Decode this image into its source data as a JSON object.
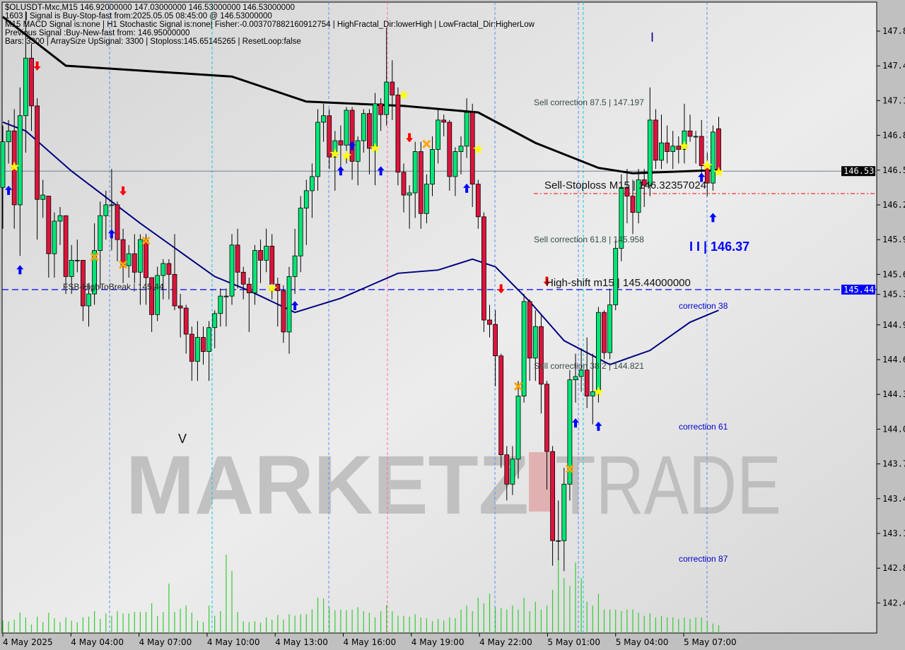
{
  "header": {
    "line1": "$OLUSDT-Mxc,M15  146.92000000 147.03000000 146.53000000 146.53000000",
    "line2": "1603 | Signal is Buy-Stop-fast from:2025.05.05 08:45:00 @ 146.53000000",
    "line3": "M15 MACD Signal is:none | H1 Stochastic Signal is:none| Fisher:-0.003707882160912754 | HighFractal_Dir:lowerHigh | LowFractal_Dir:HigherLow",
    "line4": "Previous Signal :Buy-New-fast from: 146.95000000",
    "line5": "Bars: 3300 | ArraySize UpSignal: 3300 | Stoploss:145.65145265 | ResetLoop:false"
  },
  "annotations": {
    "sell_corr_875": "Sell correction 87.5 | 147.197",
    "sell_stoploss": "Sell-Stoploss M15 | 146.32357024",
    "sell_corr_618": "Sell correction 61.8 | 145.958",
    "level_ii": "I I | 146.37",
    "high_shift": "High-shift m15 | 145.44000000",
    "correction_38": "correction 38",
    "sell_corr_382": "Sell correction 38.2 | 144.821",
    "correction_61": "correction 61",
    "correction_87": "correction 87",
    "fsb_high": "FSB-HighToBreak | 145.44",
    "wave_v": "V",
    "wave_i": "I"
  },
  "watermark": {
    "left": "MARKETZ",
    "mid": "I",
    "right": "TRADE"
  },
  "colors": {
    "bull": "#00e676",
    "bear": "#dc143c",
    "ma_slow": "#000000",
    "ma_fast": "#000080",
    "bid_line": "#708090",
    "stoploss_line": "#ff0000",
    "high_shift_line": "#0000ff",
    "volume": "#32cd32",
    "up_arrow": "#0000ff",
    "down_arrow": "#ff0000",
    "star": "#ffff00",
    "cross": "#ffa500",
    "bid_label_bg": "#000000",
    "high_label_bg": "#0000ff"
  },
  "chart_data": {
    "type": "candlestick",
    "symbol": "$OLUSDT-Mxc",
    "timeframe": "M15",
    "ylim": [
      142.28,
      148.085
    ],
    "y_ticks": [
      "147.8",
      "147.4",
      "147.1",
      "146.8",
      "146.5",
      "146.2",
      "145.9",
      "145.6",
      "145.3",
      "144.9",
      "144.6",
      "144.3",
      "144.0",
      "143.7",
      "143.4",
      "143.1",
      "142.8",
      "142.4"
    ],
    "x_ticks": [
      "4 May 2025",
      "4 May 04:00",
      "4 May 07:00",
      "4 May 10:00",
      "4 May 13:00",
      "4 May 16:00",
      "4 May 19:00",
      "4 May 22:00",
      "5 May 01:00",
      "5 May 04:00",
      "5 May 07:00"
    ],
    "current_price_label": "146.53",
    "high_shift_label": "145.44",
    "levels": {
      "bid": 146.53,
      "stoploss": 146.32357024,
      "high_shift": 145.44
    },
    "candles_ohlc": [
      [
        146.38,
        146.95,
        146.0,
        146.8
      ],
      [
        146.8,
        147.0,
        146.6,
        146.9
      ],
      [
        146.9,
        147.1,
        146.0,
        146.22
      ],
      [
        146.22,
        147.3,
        145.75,
        147.04
      ],
      [
        147.04,
        148.0,
        146.7,
        147.57
      ],
      [
        147.57,
        147.7,
        146.9,
        147.13
      ],
      [
        147.13,
        147.2,
        145.9,
        146.27
      ],
      [
        146.27,
        146.45,
        146.1,
        146.31
      ],
      [
        146.3,
        146.3,
        145.55,
        145.77
      ],
      [
        145.77,
        146.15,
        145.55,
        146.07
      ],
      [
        146.07,
        146.2,
        145.85,
        146.12
      ],
      [
        146.12,
        146.12,
        145.4,
        145.56
      ],
      [
        145.56,
        145.85,
        145.4,
        145.71
      ],
      [
        145.71,
        145.9,
        145.6,
        145.71
      ],
      [
        145.71,
        145.71,
        145.15,
        145.29
      ],
      [
        145.29,
        145.5,
        145.1,
        145.4
      ],
      [
        145.4,
        146.05,
        145.3,
        145.8
      ],
      [
        145.8,
        146.25,
        145.45,
        146.12
      ],
      [
        146.12,
        146.35,
        145.9,
        146.22
      ],
      [
        146.22,
        146.55,
        145.8,
        146.22
      ],
      [
        146.22,
        146.25,
        145.7,
        145.9
      ],
      [
        145.9,
        146.0,
        145.5,
        145.66
      ],
      [
        145.66,
        145.85,
        145.55,
        145.77
      ],
      [
        145.77,
        145.95,
        145.5,
        145.6
      ],
      [
        145.6,
        145.95,
        145.3,
        145.9
      ],
      [
        145.9,
        145.95,
        145.3,
        145.55
      ],
      [
        145.55,
        145.55,
        145.05,
        145.21
      ],
      [
        145.21,
        145.65,
        145.15,
        145.57
      ],
      [
        145.57,
        145.72,
        145.35,
        145.68
      ],
      [
        145.68,
        145.72,
        145.35,
        145.58
      ],
      [
        145.58,
        145.95,
        145.25,
        145.29
      ],
      [
        145.29,
        145.4,
        145.0,
        145.27
      ],
      [
        145.27,
        145.3,
        144.85,
        145.03
      ],
      [
        145.03,
        145.1,
        144.6,
        144.78
      ],
      [
        144.78,
        145.15,
        144.6,
        145.0
      ],
      [
        145.0,
        145.1,
        144.75,
        144.87
      ],
      [
        144.87,
        145.15,
        144.6,
        145.09
      ],
      [
        145.09,
        145.25,
        144.9,
        145.22
      ],
      [
        145.22,
        145.45,
        145.1,
        145.38
      ],
      [
        145.38,
        145.45,
        145.1,
        145.38
      ],
      [
        145.38,
        145.95,
        145.3,
        145.85
      ],
      [
        145.85,
        146.0,
        145.45,
        145.6
      ],
      [
        145.6,
        145.65,
        145.35,
        145.49
      ],
      [
        145.49,
        145.55,
        145.05,
        145.41
      ],
      [
        145.41,
        145.85,
        145.3,
        145.8
      ],
      [
        145.8,
        145.9,
        145.5,
        145.71
      ],
      [
        145.71,
        146.0,
        145.6,
        145.84
      ],
      [
        145.84,
        145.95,
        145.35,
        145.49
      ],
      [
        145.49,
        145.55,
        145.1,
        145.43
      ],
      [
        145.43,
        145.48,
        144.95,
        145.05
      ],
      [
        145.05,
        145.65,
        144.85,
        145.56
      ],
      [
        145.56,
        146.0,
        145.4,
        145.75
      ],
      [
        145.75,
        146.3,
        145.6,
        146.19
      ],
      [
        146.19,
        146.45,
        145.85,
        146.35
      ],
      [
        146.35,
        146.6,
        146.1,
        146.48
      ],
      [
        146.48,
        147.1,
        146.35,
        146.98
      ],
      [
        146.98,
        147.15,
        146.8,
        147.04
      ],
      [
        147.04,
        147.1,
        146.55,
        146.66
      ],
      [
        146.66,
        146.9,
        146.35,
        146.81
      ],
      [
        146.81,
        146.95,
        146.5,
        146.77
      ],
      [
        146.77,
        147.12,
        146.6,
        147.09
      ],
      [
        147.09,
        147.12,
        146.45,
        146.62
      ],
      [
        146.62,
        146.85,
        146.4,
        146.81
      ],
      [
        146.81,
        147.1,
        146.7,
        147.06
      ],
      [
        147.06,
        147.1,
        146.5,
        146.74
      ],
      [
        146.74,
        147.25,
        146.4,
        147.15
      ],
      [
        147.15,
        147.2,
        146.9,
        147.05
      ],
      [
        147.05,
        147.85,
        146.95,
        147.35
      ],
      [
        147.35,
        147.55,
        147.0,
        147.23
      ],
      [
        147.23,
        147.3,
        146.4,
        146.52
      ],
      [
        146.52,
        146.6,
        146.15,
        146.31
      ],
      [
        146.31,
        146.4,
        146.0,
        146.33
      ],
      [
        146.33,
        146.8,
        146.1,
        146.71
      ],
      [
        146.71,
        146.8,
        146.0,
        146.14
      ],
      [
        146.14,
        146.5,
        146.05,
        146.41
      ],
      [
        146.41,
        146.85,
        146.3,
        146.73
      ],
      [
        146.73,
        147.1,
        146.6,
        147.0
      ],
      [
        147.0,
        147.05,
        146.85,
        146.98
      ],
      [
        146.98,
        147.0,
        146.35,
        146.48
      ],
      [
        146.48,
        146.75,
        146.3,
        146.71
      ],
      [
        146.71,
        146.85,
        146.5,
        146.76
      ],
      [
        146.76,
        147.2,
        146.65,
        147.07
      ],
      [
        147.07,
        147.15,
        146.2,
        146.41
      ],
      [
        146.41,
        146.45,
        146.0,
        146.11
      ],
      [
        146.11,
        146.15,
        145.05,
        145.16
      ],
      [
        145.16,
        145.3,
        145.0,
        145.12
      ],
      [
        145.12,
        145.25,
        144.55,
        144.83
      ],
      [
        144.83,
        144.85,
        143.8,
        143.92
      ],
      [
        143.92,
        144.0,
        143.5,
        143.65
      ],
      [
        143.65,
        144.0,
        143.55,
        143.88
      ],
      [
        143.88,
        144.6,
        143.7,
        144.46
      ],
      [
        144.46,
        145.4,
        144.4,
        145.33
      ],
      [
        145.33,
        145.35,
        144.6,
        144.81
      ],
      [
        144.81,
        145.25,
        144.6,
        145.1
      ],
      [
        145.1,
        145.2,
        144.3,
        144.57
      ],
      [
        144.57,
        144.6,
        143.6,
        143.95
      ],
      [
        143.95,
        144.0,
        142.9,
        143.13
      ],
      [
        143.13,
        143.5,
        142.95,
        143.13
      ],
      [
        143.13,
        143.8,
        142.85,
        143.65
      ],
      [
        143.65,
        144.7,
        143.5,
        144.61
      ],
      [
        144.61,
        144.85,
        144.4,
        144.64
      ],
      [
        144.64,
        144.9,
        144.5,
        144.7
      ],
      [
        144.7,
        145.0,
        144.35,
        144.46
      ],
      [
        144.46,
        144.85,
        144.2,
        144.5
      ],
      [
        144.5,
        145.28,
        144.4,
        145.23
      ],
      [
        145.23,
        145.25,
        144.8,
        144.86
      ],
      [
        144.86,
        145.45,
        144.8,
        145.3
      ],
      [
        145.3,
        145.9,
        145.25,
        145.82
      ],
      [
        145.82,
        146.5,
        145.7,
        146.38
      ],
      [
        146.38,
        146.55,
        146.05,
        146.3
      ],
      [
        146.3,
        146.45,
        145.95,
        146.15
      ],
      [
        146.15,
        146.55,
        146.05,
        146.45
      ],
      [
        146.45,
        146.55,
        146.2,
        146.4
      ],
      [
        146.4,
        147.3,
        146.3,
        147.0
      ],
      [
        147.0,
        147.1,
        146.55,
        146.63
      ],
      [
        146.63,
        147.05,
        146.55,
        146.79
      ],
      [
        146.79,
        146.95,
        146.6,
        146.71
      ],
      [
        146.71,
        146.9,
        146.55,
        146.76
      ],
      [
        146.76,
        146.85,
        146.6,
        146.73
      ],
      [
        146.73,
        147.15,
        146.6,
        146.9
      ],
      [
        146.9,
        147.05,
        146.8,
        146.85
      ],
      [
        146.85,
        146.9,
        146.6,
        146.85
      ],
      [
        146.85,
        147.0,
        146.5,
        146.58
      ],
      [
        146.58,
        146.7,
        146.3,
        146.42
      ],
      [
        146.42,
        146.95,
        146.35,
        146.89
      ],
      [
        146.92,
        147.03,
        146.53,
        146.53
      ]
    ],
    "volume_relative": [
      0.16,
      0.15,
      0.17,
      0.26,
      0.2,
      0.11,
      0.21,
      0.14,
      0.26,
      0.19,
      0.14,
      0.2,
      0.16,
      0.14,
      0.2,
      0.21,
      0.28,
      0.18,
      0.25,
      0.22,
      0.28,
      0.25,
      0.25,
      0.27,
      0.27,
      0.27,
      0.38,
      0.22,
      0.27,
      0.63,
      0.27,
      0.31,
      0.35,
      0.26,
      0.16,
      0.14,
      0.35,
      0.22,
      0.28,
      1.0,
      0.79,
      0.27,
      0.15,
      0.14,
      0.15,
      0.13,
      0.2,
      0.17,
      0.23,
      0.17,
      0.24,
      0.22,
      0.24,
      0.24,
      0.3,
      0.45,
      0.44,
      0.33,
      0.29,
      0.3,
      0.29,
      0.3,
      0.33,
      0.28,
      0.26,
      0.2,
      0.28,
      0.36,
      0.28,
      0.22,
      0.22,
      0.21,
      0.24,
      0.2,
      0.19,
      0.15,
      0.18,
      0.16,
      0.2,
      0.19,
      0.3,
      0.35,
      0.28,
      0.45,
      0.38,
      0.5,
      0.33,
      0.32,
      0.3,
      0.35,
      0.3,
      0.45,
      0.28,
      0.4,
      0.3,
      0.35,
      0.55,
      0.95,
      0.7,
      0.6,
      0.9,
      0.7,
      0.4,
      0.35,
      0.5,
      0.3,
      0.3,
      0.3,
      0.28,
      0.3,
      0.3,
      0.26,
      0.22,
      0.25,
      0.2,
      0.22,
      0.2,
      0.2,
      0.18,
      0.2,
      0.18,
      0.2,
      0.2,
      0.15,
      0.12,
      0.1
    ],
    "ma_slow": [
      [
        0,
        147.95
      ],
      [
        11,
        147.5
      ],
      [
        40,
        147.4
      ],
      [
        53,
        147.17
      ],
      [
        70,
        147.13
      ],
      [
        83,
        147.07
      ],
      [
        93,
        146.79
      ],
      [
        104,
        146.56
      ],
      [
        110,
        146.51
      ],
      [
        125,
        146.54
      ]
    ],
    "ma_fast": [
      [
        0,
        146.98
      ],
      [
        4,
        146.9
      ],
      [
        12,
        146.53
      ],
      [
        24,
        146.05
      ],
      [
        37,
        145.56
      ],
      [
        43,
        145.43
      ],
      [
        51,
        145.23
      ],
      [
        59,
        145.36
      ],
      [
        69,
        145.59
      ],
      [
        76,
        145.62
      ],
      [
        82,
        145.72
      ],
      [
        86,
        145.65
      ],
      [
        92,
        145.33
      ],
      [
        98,
        144.97
      ],
      [
        106,
        144.75
      ],
      [
        113,
        144.88
      ],
      [
        120,
        145.14
      ],
      [
        125,
        145.25
      ]
    ],
    "signals": {
      "up_arrows": [
        [
          1,
          146.35
        ],
        [
          3,
          145.62
        ],
        [
          19,
          145.95
        ],
        [
          51,
          145.29
        ],
        [
          59,
          146.53
        ],
        [
          61,
          146.76
        ],
        [
          66,
          146.53
        ],
        [
          81,
          146.37
        ],
        [
          100,
          144.21
        ],
        [
          104,
          144.18
        ],
        [
          122,
          146.47
        ],
        [
          124,
          146.1
        ]
      ],
      "down_arrows": [
        [
          6,
          147.5
        ],
        [
          21,
          146.35
        ],
        [
          71,
          146.84
        ],
        [
          87,
          145.45
        ],
        [
          95,
          145.52
        ]
      ],
      "stars": [
        [
          2,
          146.57
        ],
        [
          47,
          145.45
        ],
        [
          58,
          146.69
        ],
        [
          60,
          146.67
        ],
        [
          65,
          146.74
        ],
        [
          70,
          147.23
        ],
        [
          83,
          146.73
        ],
        [
          104,
          144.5
        ],
        [
          119,
          146.76
        ],
        [
          123,
          146.58
        ],
        [
          125,
          146.52
        ]
      ],
      "crosses": [
        [
          16,
          145.74
        ],
        [
          21,
          145.67
        ],
        [
          25,
          145.89
        ],
        [
          74,
          146.78
        ],
        [
          90,
          144.55
        ],
        [
          99,
          143.79
        ]
      ]
    }
  }
}
